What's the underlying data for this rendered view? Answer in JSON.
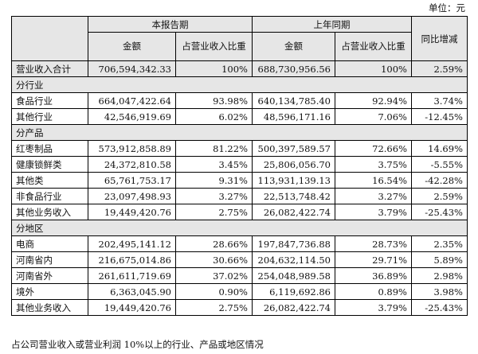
{
  "unit": "单位：元",
  "header": {
    "group_current": "本报告期",
    "group_prior": "上年同期",
    "yoy": "同比增减",
    "amount": "金额",
    "share": "占营业收入比重"
  },
  "total": {
    "label": "营业收入合计",
    "cur_amt": "706,594,342.33",
    "cur_pct": "100%",
    "pri_amt": "688,730,956.56",
    "pri_pct": "100%",
    "yoy": "2.59%"
  },
  "sections": [
    {
      "title": "分行业",
      "rows": [
        {
          "label": "食品行业",
          "cur_amt": "664,047,422.64",
          "cur_pct": "93.98%",
          "pri_amt": "640,134,785.40",
          "pri_pct": "92.94%",
          "yoy": "3.74%"
        },
        {
          "label": "其他行业",
          "cur_amt": "42,546,919.69",
          "cur_pct": "6.02%",
          "pri_amt": "48,596,171.16",
          "pri_pct": "7.06%",
          "yoy": "-12.45%"
        }
      ]
    },
    {
      "title": "分产品",
      "rows": [
        {
          "label": "红枣制品",
          "cur_amt": "573,912,858.89",
          "cur_pct": "81.22%",
          "pri_amt": "500,397,589.57",
          "pri_pct": "72.66%",
          "yoy": "14.69%"
        },
        {
          "label": "健康锁鲜类",
          "cur_amt": "24,372,810.58",
          "cur_pct": "3.45%",
          "pri_amt": "25,806,056.70",
          "pri_pct": "3.75%",
          "yoy": "-5.55%"
        },
        {
          "label": "其他类",
          "cur_amt": "65,761,753.17",
          "cur_pct": "9.31%",
          "pri_amt": "113,931,139.13",
          "pri_pct": "16.54%",
          "yoy": "-42.28%"
        },
        {
          "label": "非食品行业",
          "cur_amt": "23,097,498.93",
          "cur_pct": "3.27%",
          "pri_amt": "22,513,748.42",
          "pri_pct": "3.27%",
          "yoy": "2.59%"
        },
        {
          "label": "其他业务收入",
          "cur_amt": "19,449,420.76",
          "cur_pct": "2.75%",
          "pri_amt": "26,082,422.74",
          "pri_pct": "3.79%",
          "yoy": "-25.43%"
        }
      ]
    },
    {
      "title": "分地区",
      "rows": [
        {
          "label": "电商",
          "cur_amt": "202,495,141.12",
          "cur_pct": "28.66%",
          "pri_amt": "197,847,736.88",
          "pri_pct": "28.73%",
          "yoy": "2.35%"
        },
        {
          "label": "河南省内",
          "cur_amt": "216,675,014.86",
          "cur_pct": "30.66%",
          "pri_amt": "204,632,114.50",
          "pri_pct": "29.71%",
          "yoy": "5.89%"
        },
        {
          "label": "河南省外",
          "cur_amt": "261,611,719.69",
          "cur_pct": "37.02%",
          "pri_amt": "254,048,989.58",
          "pri_pct": "36.89%",
          "yoy": "2.98%"
        },
        {
          "label": "境外",
          "cur_amt": "6,363,045.90",
          "cur_pct": "0.90%",
          "pri_amt": "6,119,692.86",
          "pri_pct": "0.89%",
          "yoy": "3.98%"
        },
        {
          "label": "其他业务收入",
          "cur_amt": "19,449,420.76",
          "cur_pct": "2.75%",
          "pri_amt": "26,082,422.74",
          "pri_pct": "3.79%",
          "yoy": "-25.43%"
        }
      ]
    }
  ],
  "footnote": "占公司营业收入或营业利润 10%以上的行业、产品或地区情况"
}
